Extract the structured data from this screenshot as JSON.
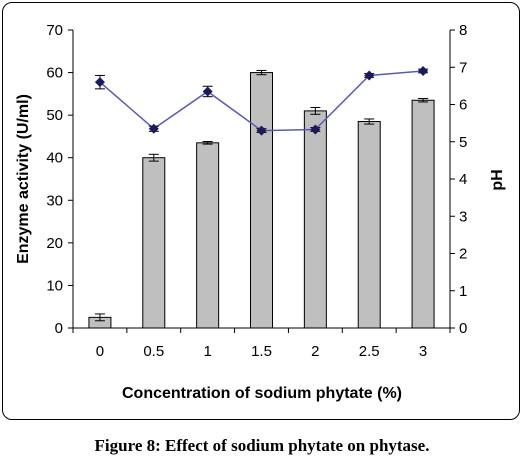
{
  "caption": "Figure 8: Effect of sodium phytate on phytase.",
  "chart_data": {
    "type": "bar",
    "categories": [
      "0",
      "0.5",
      "1",
      "1.5",
      "2",
      "2.5",
      "3"
    ],
    "xlabel": "Concentration  of sodium phytate  (%)",
    "ylabel": "Enzyme activity  (U/ml)",
    "y2label": "pH",
    "ylim": [
      0,
      70
    ],
    "yticks": [
      0,
      10,
      20,
      30,
      40,
      50,
      60,
      70
    ],
    "y2lim": [
      0,
      8
    ],
    "y2ticks": [
      0,
      1,
      2,
      3,
      4,
      5,
      6,
      7,
      8
    ],
    "grid": false,
    "series": [
      {
        "kind": "bar",
        "axis": "left",
        "values": [
          2.5,
          40,
          43.5,
          60,
          51,
          48.5,
          53.5
        ],
        "errors": [
          0.8,
          0.8,
          0.3,
          0.5,
          0.8,
          0.6,
          0.4
        ],
        "color": "#bfbfbf"
      },
      {
        "kind": "line",
        "axis": "right",
        "marker": "diamond",
        "values": [
          6.6,
          5.35,
          6.35,
          5.3,
          5.33,
          6.78,
          6.9
        ],
        "errors": [
          0.18,
          0.07,
          0.14,
          0.05,
          0.05,
          0.05,
          0.05
        ],
        "color": "#5a5ab4",
        "marker_color": "#1a1a5c"
      }
    ]
  }
}
